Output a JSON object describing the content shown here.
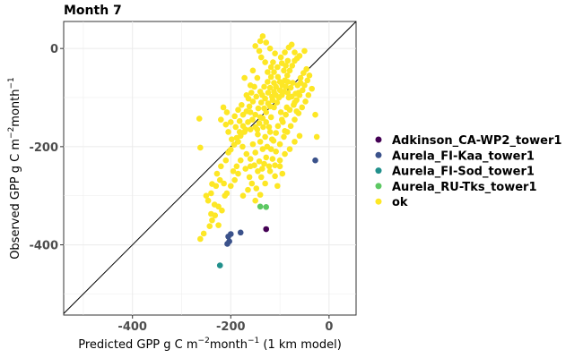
{
  "chart_data": {
    "type": "scatter",
    "title": "Month 7",
    "xlabel": {
      "prefix": "Predicted GPP g C m",
      "sup1": "−2",
      "mid": "month",
      "sup2": "−1",
      "suffix": " (1 km model)"
    },
    "ylabel": {
      "prefix": "Observed GPP g C m",
      "sup1": "−2",
      "mid": "month",
      "sup2": "−1",
      "suffix": ""
    },
    "xlim": [
      -540,
      55
    ],
    "ylim": [
      -543,
      55
    ],
    "x_ticks": [
      -400,
      -200,
      0
    ],
    "y_ticks": [
      0,
      -200,
      -400
    ],
    "x_tick_labels": [
      "-400",
      "-200",
      "0"
    ],
    "y_tick_labels": [
      "0",
      "-200",
      "-400"
    ],
    "grid": true,
    "reference_line": "1:1",
    "legend_position": "right",
    "series": [
      {
        "name": "Adkinson_CA-WP2_tower1",
        "color": "#440154",
        "points": [
          [
            -128,
            -368
          ]
        ]
      },
      {
        "name": "Aurela_FI-Kaa_tower1",
        "color": "#3b528b",
        "points": [
          [
            -28,
            -228
          ],
          [
            -180,
            -375
          ],
          [
            -200,
            -378
          ],
          [
            -205,
            -383
          ],
          [
            -203,
            -393
          ],
          [
            -207,
            -398
          ]
        ]
      },
      {
        "name": "Aurela_FI-Sod_tower1",
        "color": "#21908c",
        "points": [
          [
            -222,
            -442
          ]
        ]
      },
      {
        "name": "Aurela_RU-Tks_tower1",
        "color": "#5dc863",
        "points": [
          [
            -140,
            -322
          ],
          [
            -128,
            -323
          ]
        ]
      },
      {
        "name": "ok",
        "color": "#fde725",
        "points": [
          [
            -262,
            -388
          ],
          [
            -255,
            -377
          ],
          [
            -243,
            -362
          ],
          [
            -238,
            -350
          ],
          [
            -240,
            -337
          ],
          [
            -233,
            -318
          ],
          [
            -250,
            -300
          ],
          [
            -240,
            -295
          ],
          [
            -230,
            -280
          ],
          [
            -222,
            -268
          ],
          [
            -228,
            -255
          ],
          [
            -220,
            -240
          ],
          [
            -210,
            -228
          ],
          [
            -205,
            -212
          ],
          [
            -200,
            -206
          ],
          [
            -193,
            -196
          ],
          [
            -185,
            -190
          ],
          [
            -180,
            -178
          ],
          [
            -172,
            -170
          ],
          [
            -160,
            -165
          ],
          [
            -150,
            -160
          ],
          [
            -142,
            -152
          ],
          [
            -135,
            -142
          ],
          [
            -128,
            -130
          ],
          [
            -120,
            -118
          ],
          [
            -115,
            -105
          ],
          [
            -108,
            -95
          ],
          [
            -100,
            -85
          ],
          [
            -95,
            -75
          ],
          [
            -90,
            -65
          ],
          [
            -85,
            -55
          ],
          [
            -80,
            -45
          ],
          [
            -75,
            -35
          ],
          [
            -70,
            -25
          ],
          [
            -60,
            -15
          ],
          [
            -50,
            -5
          ],
          [
            -264,
            -143
          ],
          [
            -262,
            -202
          ],
          [
            -220,
            -145
          ],
          [
            -210,
            -155
          ],
          [
            -205,
            -170
          ],
          [
            -198,
            -185
          ],
          [
            -190,
            -160
          ],
          [
            -182,
            -148
          ],
          [
            -175,
            -135
          ],
          [
            -168,
            -128
          ],
          [
            -162,
            -118
          ],
          [
            -155,
            -108
          ],
          [
            -148,
            -98
          ],
          [
            -140,
            -88
          ],
          [
            -132,
            -78
          ],
          [
            -125,
            -68
          ],
          [
            -118,
            -58
          ],
          [
            -112,
            -48
          ],
          [
            -105,
            -38
          ],
          [
            -96,
            -30
          ],
          [
            -130,
            -28
          ],
          [
            -138,
            -18
          ],
          [
            -142,
            -5
          ],
          [
            -150,
            5
          ],
          [
            -155,
            -45
          ],
          [
            -160,
            -75
          ],
          [
            -168,
            -95
          ],
          [
            -172,
            -60
          ],
          [
            -178,
            -115
          ],
          [
            -185,
            -125
          ],
          [
            -192,
            -138
          ],
          [
            -200,
            -150
          ],
          [
            -208,
            -130
          ],
          [
            -215,
            -120
          ],
          [
            -176,
            -200
          ],
          [
            -168,
            -215
          ],
          [
            -160,
            -225
          ],
          [
            -152,
            -238
          ],
          [
            -145,
            -250
          ],
          [
            -138,
            -262
          ],
          [
            -130,
            -275
          ],
          [
            -122,
            -240
          ],
          [
            -115,
            -225
          ],
          [
            -108,
            -210
          ],
          [
            -100,
            -195
          ],
          [
            -92,
            -180
          ],
          [
            -85,
            -170
          ],
          [
            -78,
            -158
          ],
          [
            -70,
            -145
          ],
          [
            -62,
            -132
          ],
          [
            -55,
            -120
          ],
          [
            -48,
            -108
          ],
          [
            -42,
            -95
          ],
          [
            -35,
            -82
          ],
          [
            -28,
            -135
          ],
          [
            -25,
            -180
          ],
          [
            -60,
            -178
          ],
          [
            -70,
            -190
          ],
          [
            -80,
            -205
          ],
          [
            -90,
            -215
          ],
          [
            -100,
            -228
          ],
          [
            -110,
            -238
          ],
          [
            -120,
            -250
          ],
          [
            -185,
            -255
          ],
          [
            -192,
            -268
          ],
          [
            -200,
            -280
          ],
          [
            -208,
            -295
          ],
          [
            -175,
            -300
          ],
          [
            -165,
            -288
          ],
          [
            -157,
            -275
          ],
          [
            -212,
            -300
          ],
          [
            -225,
            -322
          ],
          [
            -232,
            -340
          ],
          [
            -225,
            -360
          ],
          [
            -218,
            -330
          ],
          [
            -148,
            -285
          ],
          [
            -150,
            -310
          ],
          [
            -140,
            -298
          ],
          [
            -130,
            -180
          ],
          [
            -126,
            -200
          ],
          [
            -122,
            -160
          ],
          [
            -118,
            -140
          ],
          [
            -112,
            -120
          ],
          [
            -106,
            -110
          ],
          [
            -102,
            -100
          ],
          [
            -98,
            -130
          ],
          [
            -94,
            -150
          ],
          [
            -90,
            -168
          ],
          [
            -86,
            -120
          ],
          [
            -82,
            -100
          ],
          [
            -78,
            -80
          ],
          [
            -74,
            -70
          ],
          [
            -70,
            -110
          ],
          [
            -66,
            -128
          ],
          [
            -62,
            -90
          ],
          [
            -58,
            -70
          ],
          [
            -92,
            -45
          ],
          [
            -88,
            -35
          ],
          [
            -84,
            -25
          ],
          [
            -110,
            -10
          ],
          [
            -120,
            0
          ],
          [
            -128,
            12
          ],
          [
            -135,
            25
          ],
          [
            -140,
            15
          ],
          [
            -70,
            -8
          ],
          [
            -65,
            -20
          ],
          [
            -160,
            -130
          ],
          [
            -165,
            -150
          ],
          [
            -170,
            -165
          ],
          [
            -145,
            -175
          ],
          [
            -140,
            -190
          ],
          [
            -135,
            -205
          ],
          [
            -155,
            -195
          ],
          [
            -150,
            -212
          ],
          [
            -110,
            -260
          ],
          [
            -105,
            -280
          ],
          [
            -180,
            -228
          ],
          [
            -188,
            -240
          ],
          [
            -195,
            -250
          ],
          [
            -214,
            -275
          ],
          [
            -246,
            -310
          ],
          [
            -238,
            -276
          ],
          [
            -170,
            -245
          ],
          [
            -162,
            -262
          ],
          [
            -132,
            -235
          ],
          [
            -128,
            -222
          ],
          [
            -118,
            -205
          ],
          [
            -113,
            -188
          ],
          [
            -108,
            -172
          ],
          [
            -104,
            -158
          ],
          [
            -96,
            -145
          ],
          [
            -88,
            -135
          ],
          [
            -80,
            -125
          ],
          [
            -72,
            -115
          ],
          [
            -66,
            -105
          ],
          [
            -60,
            -95
          ],
          [
            -54,
            -85
          ],
          [
            -50,
            -75
          ],
          [
            -44,
            -65
          ],
          [
            -40,
            -55
          ],
          [
            -100,
            -68
          ],
          [
            -104,
            -58
          ],
          [
            -108,
            -78
          ],
          [
            -112,
            -88
          ],
          [
            -116,
            -98
          ],
          [
            -124,
            -112
          ],
          [
            -132,
            -122
          ],
          [
            -138,
            -110
          ],
          [
            -144,
            -122
          ],
          [
            -150,
            -135
          ],
          [
            -156,
            -145
          ],
          [
            -175,
            -158
          ],
          [
            -182,
            -170
          ],
          [
            -188,
            -182
          ],
          [
            -146,
            -60
          ],
          [
            -152,
            -78
          ],
          [
            -158,
            -90
          ],
          [
            -164,
            -102
          ],
          [
            -125,
            -48
          ],
          [
            -118,
            -38
          ],
          [
            -114,
            -28
          ],
          [
            -98,
            -18
          ],
          [
            -90,
            -8
          ],
          [
            -82,
            2
          ],
          [
            -76,
            8
          ],
          [
            -128,
            -150
          ],
          [
            -120,
            -170
          ],
          [
            -116,
            -185
          ],
          [
            -100,
            -240
          ],
          [
            -95,
            -255
          ],
          [
            -142,
            -230
          ],
          [
            -136,
            -245
          ],
          [
            -160,
            -240
          ],
          [
            -112,
            -70
          ],
          [
            -84,
            -90
          ],
          [
            -76,
            -98
          ],
          [
            -68,
            -92
          ],
          [
            -64,
            -75
          ],
          [
            -58,
            -60
          ],
          [
            -52,
            -50
          ],
          [
            -46,
            -42
          ],
          [
            -96,
            -95
          ],
          [
            -92,
            -88
          ],
          [
            -88,
            -78
          ],
          [
            -84,
            -68
          ],
          [
            -136,
            -95
          ],
          [
            -130,
            -102
          ],
          [
            -124,
            -90
          ],
          [
            -120,
            -80
          ],
          [
            -140,
            -140
          ],
          [
            -134,
            -160
          ],
          [
            -146,
            -165
          ]
        ]
      }
    ]
  }
}
